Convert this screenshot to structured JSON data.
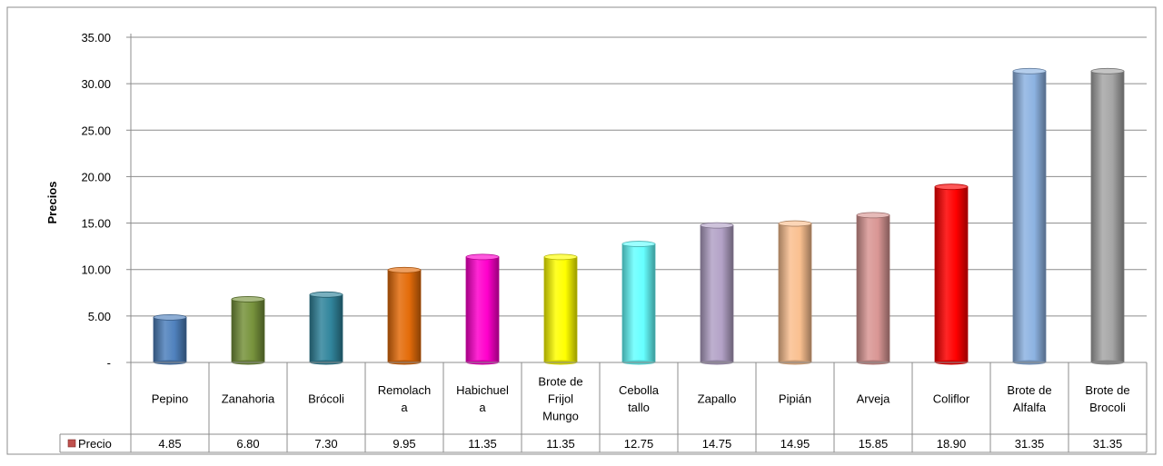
{
  "chart_data": {
    "type": "bar",
    "title": "",
    "xlabel": "",
    "ylabel": "Precios",
    "ylim": [
      0,
      35
    ],
    "y_ticks": [
      {
        "value": 0,
        "label": "-"
      },
      {
        "value": 5,
        "label": "5.00"
      },
      {
        "value": 10,
        "label": "10.00"
      },
      {
        "value": 15,
        "label": "15.00"
      },
      {
        "value": 20,
        "label": "20.00"
      },
      {
        "value": 25,
        "label": "25.00"
      },
      {
        "value": 30,
        "label": "30.00"
      },
      {
        "value": 35,
        "label": "35.00"
      }
    ],
    "grid": true,
    "legend": "data-table-left",
    "categories": [
      {
        "name": "Pepino",
        "lines": [
          "Pepino"
        ]
      },
      {
        "name": "Zanahoria",
        "lines": [
          "Zanahoria"
        ]
      },
      {
        "name": "Brócoli",
        "lines": [
          "Brócoli"
        ]
      },
      {
        "name": "Remolacha",
        "lines": [
          "Remolach",
          "a"
        ]
      },
      {
        "name": "Habichuela",
        "lines": [
          "Habichuel",
          "a"
        ]
      },
      {
        "name": "Brote de Frijol Mungo",
        "lines": [
          "Brote de",
          "Frijol",
          "Mungo"
        ]
      },
      {
        "name": "Cebolla tallo",
        "lines": [
          "Cebolla",
          "tallo"
        ]
      },
      {
        "name": "Zapallo",
        "lines": [
          "Zapallo"
        ]
      },
      {
        "name": "Pipián",
        "lines": [
          "Pipián"
        ]
      },
      {
        "name": "Arveja",
        "lines": [
          "Arveja"
        ]
      },
      {
        "name": "Coliflor",
        "lines": [
          "Coliflor"
        ]
      },
      {
        "name": "Brote de Alfalfa",
        "lines": [
          "Brote de",
          "Alfalfa"
        ]
      },
      {
        "name": "Brote de Brocoli",
        "lines": [
          "Brote de",
          "Brocoli"
        ]
      }
    ],
    "series": [
      {
        "name": "Precio",
        "values": [
          4.85,
          6.8,
          7.3,
          9.95,
          11.35,
          11.35,
          12.75,
          14.75,
          14.95,
          15.85,
          18.9,
          31.35,
          31.35
        ],
        "value_labels": [
          "4.85",
          "6.80",
          "7.30",
          "9.95",
          "11.35",
          "11.35",
          "12.75",
          "14.75",
          "14.95",
          "15.85",
          "18.90",
          "31.35",
          "31.35"
        ],
        "legend_color": "#c0504d"
      }
    ],
    "bar_colors": [
      "#4f81bd",
      "#77933c",
      "#31859c",
      "#e46c0a",
      "#ff00cc",
      "#ffff00",
      "#66ffff",
      "#b3a2c7",
      "#fac090",
      "#d99694",
      "#ff0000",
      "#8db3e2",
      "#a6a6a6"
    ]
  }
}
